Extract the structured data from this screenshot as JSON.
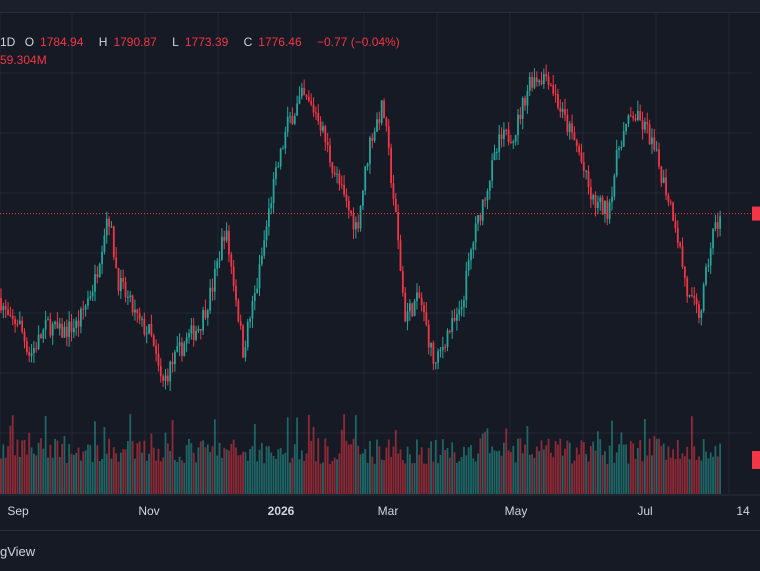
{
  "legend": {
    "interval": "1D",
    "open_label": "O",
    "open": "1784.94",
    "high_label": "H",
    "high": "1790.87",
    "low_label": "L",
    "low": "1773.39",
    "close_label": "C",
    "close": "1776.46",
    "change": "−0.77 (−0.04%)",
    "volume": "59.304M"
  },
  "footer": {
    "brand": "gView"
  },
  "colors": {
    "up": "#26a69a",
    "down": "#f23645",
    "background": "#161a25",
    "grid": "#232733",
    "text": "#d1d4dc",
    "price_line": "#f23645"
  },
  "chart_data": {
    "type": "candlestick",
    "x_ticks": [
      "Sep",
      "Nov",
      "2026",
      "Mar",
      "May",
      "Jul",
      "14"
    ],
    "current_close": 1776.46,
    "grid": true,
    "price_trend": [
      {
        "t": 0,
        "v": 1680
      },
      {
        "t": 10,
        "v": 1650
      },
      {
        "t": 18,
        "v": 1655
      },
      {
        "t": 30,
        "v": 1615
      },
      {
        "t": 48,
        "v": 1650
      },
      {
        "t": 60,
        "v": 1640
      },
      {
        "t": 78,
        "v": 1650
      },
      {
        "t": 95,
        "v": 1700
      },
      {
        "t": 108,
        "v": 1780
      },
      {
        "t": 118,
        "v": 1700
      },
      {
        "t": 140,
        "v": 1650
      },
      {
        "t": 150,
        "v": 1640
      },
      {
        "t": 162,
        "v": 1580
      },
      {
        "t": 172,
        "v": 1605
      },
      {
        "t": 185,
        "v": 1630
      },
      {
        "t": 200,
        "v": 1650
      },
      {
        "t": 212,
        "v": 1690
      },
      {
        "t": 225,
        "v": 1760
      },
      {
        "t": 235,
        "v": 1690
      },
      {
        "t": 243,
        "v": 1620
      },
      {
        "t": 258,
        "v": 1700
      },
      {
        "t": 272,
        "v": 1800
      },
      {
        "t": 288,
        "v": 1880
      },
      {
        "t": 302,
        "v": 1910
      },
      {
        "t": 318,
        "v": 1890
      },
      {
        "t": 330,
        "v": 1840
      },
      {
        "t": 345,
        "v": 1790
      },
      {
        "t": 357,
        "v": 1760
      },
      {
        "t": 370,
        "v": 1860
      },
      {
        "t": 383,
        "v": 1900
      },
      {
        "t": 395,
        "v": 1780
      },
      {
        "t": 405,
        "v": 1660
      },
      {
        "t": 420,
        "v": 1680
      },
      {
        "t": 435,
        "v": 1600
      },
      {
        "t": 447,
        "v": 1640
      },
      {
        "t": 460,
        "v": 1660
      },
      {
        "t": 472,
        "v": 1740
      },
      {
        "t": 485,
        "v": 1800
      },
      {
        "t": 500,
        "v": 1860
      },
      {
        "t": 515,
        "v": 1870
      },
      {
        "t": 530,
        "v": 1930
      },
      {
        "t": 548,
        "v": 1935
      },
      {
        "t": 562,
        "v": 1890
      },
      {
        "t": 578,
        "v": 1850
      },
      {
        "t": 592,
        "v": 1790
      },
      {
        "t": 608,
        "v": 1780
      },
      {
        "t": 620,
        "v": 1860
      },
      {
        "t": 633,
        "v": 1890
      },
      {
        "t": 648,
        "v": 1870
      },
      {
        "t": 662,
        "v": 1820
      },
      {
        "t": 675,
        "v": 1770
      },
      {
        "t": 688,
        "v": 1680
      },
      {
        "t": 700,
        "v": 1660
      },
      {
        "t": 712,
        "v": 1750
      },
      {
        "t": 721,
        "v": 1776
      }
    ],
    "y_range": [
      1560,
      1960
    ]
  }
}
